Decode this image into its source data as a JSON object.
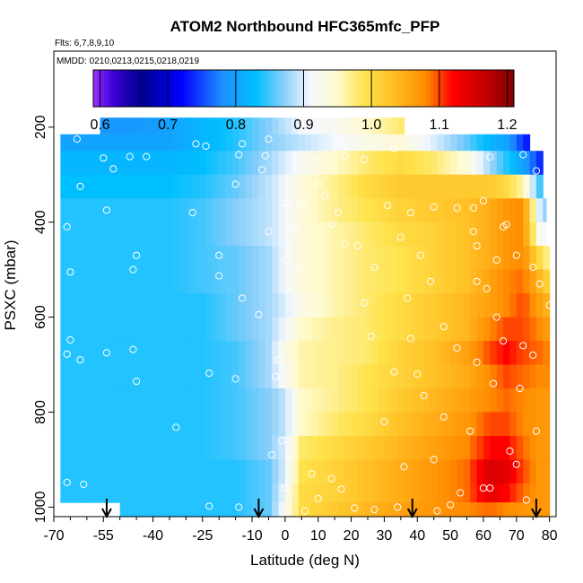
{
  "chart_data": {
    "type": "heatmap",
    "title": "ATOM2 Northbound HFC365mfc_PFP",
    "flights_note": "Flts: 6,7,8,9,10",
    "dates_note": "MMDD: 0210,0213,0215,0218,0219",
    "xlabel": "Latitude (deg N)",
    "ylabel": "PSXC (mbar)",
    "xlim": [
      -70,
      82
    ],
    "ylim": [
      1020,
      40
    ],
    "x_ticks": [
      -70,
      -55,
      -40,
      -25,
      -10,
      0,
      10,
      20,
      30,
      40,
      50,
      60,
      70,
      80
    ],
    "x_ticklabels": [
      "-70",
      "-55",
      "-40",
      "-25",
      "-10",
      "0",
      "10",
      "20",
      "30",
      "40",
      "50",
      "60",
      "70",
      "80"
    ],
    "y_ticks": [
      200,
      400,
      600,
      800,
      1000
    ],
    "y_ticklabels": [
      "200",
      "400",
      "600",
      "800",
      "1000"
    ],
    "colorbar": {
      "min": 0.59,
      "max": 1.21,
      "ticks": [
        0.6,
        0.7,
        0.8,
        0.9,
        1.0,
        1.1,
        1.2
      ],
      "ticklabels": [
        "0.6",
        "0.7",
        "0.8",
        "0.9",
        "1.0",
        "1.1",
        "1.2"
      ],
      "stops": [
        {
          "v": 0.59,
          "color": "#9b30ff"
        },
        {
          "v": 0.62,
          "color": "#3a00d8"
        },
        {
          "v": 0.66,
          "color": "#00008b"
        },
        {
          "v": 0.72,
          "color": "#0000ff"
        },
        {
          "v": 0.78,
          "color": "#1e90ff"
        },
        {
          "v": 0.83,
          "color": "#00bfff"
        },
        {
          "v": 0.87,
          "color": "#87cefa"
        },
        {
          "v": 0.91,
          "color": "#f5f8ff"
        },
        {
          "v": 0.95,
          "color": "#fffacd"
        },
        {
          "v": 0.99,
          "color": "#ffe34d"
        },
        {
          "v": 1.03,
          "color": "#ffc125"
        },
        {
          "v": 1.08,
          "color": "#ff8c00"
        },
        {
          "v": 1.12,
          "color": "#ff0000"
        },
        {
          "v": 1.17,
          "color": "#c00000"
        },
        {
          "v": 1.21,
          "color": "#800000"
        }
      ]
    },
    "field": {
      "lat_knots": [
        -68,
        -55,
        -45,
        -35,
        -25,
        -15,
        -5,
        0,
        5,
        15,
        25,
        35,
        45,
        55,
        62,
        67,
        72,
        77,
        80
      ],
      "lat_min": -68,
      "lat_max": 80,
      "lat_step": 2,
      "rows": [
        {
          "p_top": 180,
          "p_bot": 215,
          "lat_start": -56,
          "lat_end": 36,
          "values": [
            0.79,
            0.79,
            0.79,
            0.8,
            0.82,
            0.84,
            0.87,
            0.89,
            0.91,
            0.92,
            0.95,
            0.98,
            0.99,
            0.99,
            0.99,
            0.99,
            0.99,
            0.99,
            0.99
          ]
        },
        {
          "p_top": 215,
          "p_bot": 250,
          "lat_start": -68,
          "lat_end": 74,
          "values": [
            0.8,
            0.8,
            0.8,
            0.8,
            0.82,
            0.84,
            0.87,
            0.88,
            0.89,
            0.91,
            0.93,
            0.94,
            0.9,
            0.86,
            0.82,
            0.8,
            0.74,
            0.7,
            0.7
          ]
        },
        {
          "p_top": 250,
          "p_bot": 300,
          "lat_start": -68,
          "lat_end": 78,
          "values": [
            0.82,
            0.82,
            0.82,
            0.82,
            0.83,
            0.85,
            0.88,
            0.9,
            0.92,
            0.95,
            0.98,
            1.0,
            0.98,
            0.94,
            0.88,
            0.84,
            0.8,
            0.74,
            0.72
          ]
        },
        {
          "p_top": 300,
          "p_bot": 350,
          "lat_start": -68,
          "lat_end": 78,
          "values": [
            0.83,
            0.83,
            0.83,
            0.83,
            0.84,
            0.86,
            0.89,
            0.91,
            0.94,
            0.97,
            1.0,
            1.02,
            1.02,
            1.02,
            1.02,
            1.0,
            0.96,
            0.85,
            0.8
          ]
        },
        {
          "p_top": 350,
          "p_bot": 400,
          "lat_start": -68,
          "lat_end": 79,
          "values": [
            0.84,
            0.84,
            0.84,
            0.84,
            0.85,
            0.87,
            0.89,
            0.91,
            0.94,
            0.97,
            0.99,
            1.01,
            1.02,
            1.03,
            1.05,
            1.07,
            1.08,
            0.9,
            0.85
          ]
        },
        {
          "p_top": 400,
          "p_bot": 450,
          "lat_start": -68,
          "lat_end": 79,
          "values": [
            0.84,
            0.84,
            0.84,
            0.84,
            0.85,
            0.87,
            0.89,
            0.91,
            0.94,
            0.96,
            0.98,
            1.0,
            1.01,
            1.03,
            1.05,
            1.07,
            1.08,
            0.92,
            0.9
          ]
        },
        {
          "p_top": 450,
          "p_bot": 500,
          "lat_start": -68,
          "lat_end": 80,
          "values": [
            0.84,
            0.84,
            0.84,
            0.84,
            0.85,
            0.86,
            0.88,
            0.91,
            0.94,
            0.96,
            0.98,
            0.99,
            1.01,
            1.03,
            1.05,
            1.07,
            1.08,
            1.0,
            0.96
          ]
        },
        {
          "p_top": 500,
          "p_bot": 550,
          "lat_start": -68,
          "lat_end": 80,
          "values": [
            0.84,
            0.84,
            0.84,
            0.84,
            0.85,
            0.86,
            0.88,
            0.91,
            0.94,
            0.96,
            0.98,
            0.99,
            1.01,
            1.03,
            1.06,
            1.08,
            1.09,
            1.04,
            1.0
          ]
        },
        {
          "p_top": 550,
          "p_bot": 600,
          "lat_start": -68,
          "lat_end": 80,
          "values": [
            0.84,
            0.84,
            0.84,
            0.84,
            0.84,
            0.86,
            0.88,
            0.9,
            0.93,
            0.96,
            0.98,
            1.0,
            1.02,
            1.04,
            1.06,
            1.08,
            1.1,
            1.06,
            1.04
          ]
        },
        {
          "p_top": 600,
          "p_bot": 650,
          "lat_start": -68,
          "lat_end": 80,
          "values": [
            0.84,
            0.84,
            0.84,
            0.84,
            0.84,
            0.86,
            0.88,
            0.91,
            0.95,
            0.97,
            0.98,
            1.0,
            1.02,
            1.04,
            1.08,
            1.1,
            1.1,
            1.08,
            1.06
          ]
        },
        {
          "p_top": 650,
          "p_bot": 700,
          "lat_start": -68,
          "lat_end": 80,
          "values": [
            0.84,
            0.84,
            0.84,
            0.84,
            0.84,
            0.85,
            0.88,
            0.93,
            0.96,
            0.97,
            0.98,
            1.01,
            1.03,
            1.06,
            1.1,
            1.12,
            1.1,
            1.09,
            1.08
          ]
        },
        {
          "p_top": 700,
          "p_bot": 750,
          "lat_start": -68,
          "lat_end": 80,
          "values": [
            0.84,
            0.84,
            0.84,
            0.84,
            0.84,
            0.85,
            0.88,
            0.92,
            0.96,
            0.97,
            0.99,
            1.01,
            1.03,
            1.05,
            1.08,
            1.1,
            1.09,
            1.08,
            1.08
          ]
        },
        {
          "p_top": 750,
          "p_bot": 800,
          "lat_start": -68,
          "lat_end": 80,
          "values": [
            0.84,
            0.84,
            0.84,
            0.84,
            0.84,
            0.85,
            0.87,
            0.89,
            0.95,
            0.97,
            0.99,
            1.02,
            1.04,
            1.06,
            1.08,
            1.09,
            1.08,
            1.07,
            1.07
          ]
        },
        {
          "p_top": 800,
          "p_bot": 850,
          "lat_start": -68,
          "lat_end": 80,
          "values": [
            0.84,
            0.84,
            0.84,
            0.84,
            0.84,
            0.85,
            0.87,
            0.89,
            0.95,
            0.98,
            1.0,
            1.03,
            1.05,
            1.07,
            1.1,
            1.1,
            1.08,
            1.07,
            1.07
          ]
        },
        {
          "p_top": 850,
          "p_bot": 900,
          "lat_start": -68,
          "lat_end": 80,
          "values": [
            0.84,
            0.84,
            0.84,
            0.84,
            0.84,
            0.85,
            0.87,
            0.9,
            0.98,
            1.0,
            1.02,
            1.04,
            1.06,
            1.08,
            1.12,
            1.12,
            1.09,
            1.07,
            1.07
          ]
        },
        {
          "p_top": 900,
          "p_bot": 950,
          "lat_start": -68,
          "lat_end": 80,
          "values": [
            0.84,
            0.84,
            0.84,
            0.84,
            0.84,
            0.84,
            0.86,
            0.9,
            0.99,
            1.01,
            1.03,
            1.05,
            1.07,
            1.09,
            1.15,
            1.14,
            1.1,
            1.07,
            1.07
          ]
        },
        {
          "p_top": 950,
          "p_bot": 990,
          "lat_start": -68,
          "lat_end": 80,
          "values": [
            0.84,
            0.84,
            0.84,
            0.84,
            0.84,
            0.84,
            0.86,
            0.91,
            1.0,
            1.01,
            1.03,
            1.05,
            1.07,
            1.09,
            1.14,
            1.12,
            1.09,
            1.07,
            1.07
          ]
        },
        {
          "p_top": 990,
          "p_bot": 1020,
          "lat_start": -50,
          "lat_end": 80,
          "values": [
            0.84,
            0.84,
            0.84,
            0.84,
            0.84,
            0.84,
            0.86,
            0.92,
            1.0,
            1.02,
            1.04,
            1.06,
            1.07,
            1.08,
            1.09,
            1.08,
            1.07,
            1.07,
            1.07
          ]
        }
      ]
    },
    "sample_points": [
      {
        "x": -59,
        "y": 192
      },
      {
        "x": -65,
        "y": 200
      },
      {
        "x": -63,
        "y": 225
      },
      {
        "x": -47,
        "y": 262
      },
      {
        "x": -52,
        "y": 288
      },
      {
        "x": -42,
        "y": 262
      },
      {
        "x": -54,
        "y": 375
      },
      {
        "x": -66,
        "y": 410
      },
      {
        "x": -62,
        "y": 325
      },
      {
        "x": -45,
        "y": 470
      },
      {
        "x": -46,
        "y": 500
      },
      {
        "x": -65,
        "y": 505
      },
      {
        "x": -55,
        "y": 265
      },
      {
        "x": -27,
        "y": 235
      },
      {
        "x": -24,
        "y": 240
      },
      {
        "x": -13,
        "y": 235
      },
      {
        "x": -5,
        "y": 225
      },
      {
        "x": -14,
        "y": 258
      },
      {
        "x": -7,
        "y": 290
      },
      {
        "x": -15,
        "y": 320
      },
      {
        "x": -28,
        "y": 380
      },
      {
        "x": -20,
        "y": 470
      },
      {
        "x": -20,
        "y": 513
      },
      {
        "x": -13,
        "y": 560
      },
      {
        "x": -8,
        "y": 595
      },
      {
        "x": -5,
        "y": 420
      },
      {
        "x": 3,
        "y": 412
      },
      {
        "x": 1,
        "y": 455
      },
      {
        "x": 0,
        "y": 480
      },
      {
        "x": 9,
        "y": 270
      },
      {
        "x": 18,
        "y": 260
      },
      {
        "x": 22,
        "y": 450
      },
      {
        "x": 27,
        "y": 495
      },
      {
        "x": 24,
        "y": 570
      },
      {
        "x": 37,
        "y": 560
      },
      {
        "x": 26,
        "y": 640
      },
      {
        "x": 40,
        "y": 720
      },
      {
        "x": 33,
        "y": 715
      },
      {
        "x": 38,
        "y": 645
      },
      {
        "x": 48,
        "y": 620
      },
      {
        "x": 52,
        "y": 665
      },
      {
        "x": 42,
        "y": 765
      },
      {
        "x": 30,
        "y": 820
      },
      {
        "x": 48,
        "y": 810
      },
      {
        "x": 45,
        "y": 900
      },
      {
        "x": 36,
        "y": 915
      },
      {
        "x": 50,
        "y": 995
      },
      {
        "x": 53,
        "y": 970
      },
      {
        "x": 62,
        "y": 263
      },
      {
        "x": 72,
        "y": 258
      },
      {
        "x": 76,
        "y": 292
      },
      {
        "x": 60,
        "y": 355
      },
      {
        "x": 66,
        "y": 410
      },
      {
        "x": 67,
        "y": 405
      },
      {
        "x": 64,
        "y": 480
      },
      {
        "x": 70,
        "y": 470
      },
      {
        "x": 58,
        "y": 450
      },
      {
        "x": 75,
        "y": 495
      },
      {
        "x": 80,
        "y": 575
      },
      {
        "x": 77,
        "y": 530
      },
      {
        "x": 61,
        "y": 540
      },
      {
        "x": 64,
        "y": 600
      },
      {
        "x": 66,
        "y": 650
      },
      {
        "x": 72,
        "y": 660
      },
      {
        "x": 58,
        "y": 695
      },
      {
        "x": 71,
        "y": 750
      },
      {
        "x": 63,
        "y": 740
      },
      {
        "x": 75,
        "y": 680
      },
      {
        "x": 76,
        "y": 840
      },
      {
        "x": 68,
        "y": 882
      },
      {
        "x": 70,
        "y": 910
      },
      {
        "x": 62,
        "y": 960
      },
      {
        "x": 73,
        "y": 985
      },
      {
        "x": 60,
        "y": 960
      },
      {
        "x": 56,
        "y": 840
      },
      {
        "x": 10,
        "y": 320
      },
      {
        "x": 14,
        "y": 405
      },
      {
        "x": 18,
        "y": 445
      },
      {
        "x": 12,
        "y": 345
      },
      {
        "x": 5,
        "y": 500
      },
      {
        "x": -2,
        "y": 690
      },
      {
        "x": -3,
        "y": 725
      },
      {
        "x": -15,
        "y": 730
      },
      {
        "x": -23,
        "y": 718
      },
      {
        "x": -33,
        "y": 832
      },
      {
        "x": -1,
        "y": 860
      },
      {
        "x": -4,
        "y": 890
      },
      {
        "x": 8,
        "y": 930
      },
      {
        "x": 14,
        "y": 940
      },
      {
        "x": 17,
        "y": 962
      },
      {
        "x": -14,
        "y": 1000
      },
      {
        "x": -23,
        "y": 998
      },
      {
        "x": 10,
        "y": 982
      },
      {
        "x": 21,
        "y": 1002
      },
      {
        "x": 27,
        "y": 1005
      },
      {
        "x": 34,
        "y": 1000
      },
      {
        "x": 46,
        "y": 1008
      },
      {
        "x": 6,
        "y": 1008
      },
      {
        "x": 0,
        "y": 960
      },
      {
        "x": -52,
        "y": 1008
      },
      {
        "x": -66,
        "y": 948
      },
      {
        "x": -61,
        "y": 952
      },
      {
        "x": -66,
        "y": 678
      },
      {
        "x": -65,
        "y": 648
      },
      {
        "x": -62,
        "y": 690
      },
      {
        "x": -45,
        "y": 735
      },
      {
        "x": -54,
        "y": 675
      },
      {
        "x": -46,
        "y": 668
      },
      {
        "x": 31,
        "y": 365
      },
      {
        "x": 38,
        "y": 380
      },
      {
        "x": 45,
        "y": 368
      },
      {
        "x": 52,
        "y": 370
      },
      {
        "x": 57,
        "y": 370
      },
      {
        "x": 57,
        "y": 420
      },
      {
        "x": 58,
        "y": 525
      },
      {
        "x": 35,
        "y": 432
      },
      {
        "x": 41,
        "y": 470
      },
      {
        "x": 44,
        "y": 525
      },
      {
        "x": 5,
        "y": 360
      },
      {
        "x": 33,
        "y": 245
      },
      {
        "x": 24,
        "y": 268
      },
      {
        "x": -6,
        "y": 260
      },
      {
        "x": 18,
        "y": 240
      },
      {
        "x": 0,
        "y": 360
      },
      {
        "x": 16,
        "y": 380
      }
    ],
    "arrows_lat": [
      -54,
      -8,
      38.5,
      76
    ]
  }
}
